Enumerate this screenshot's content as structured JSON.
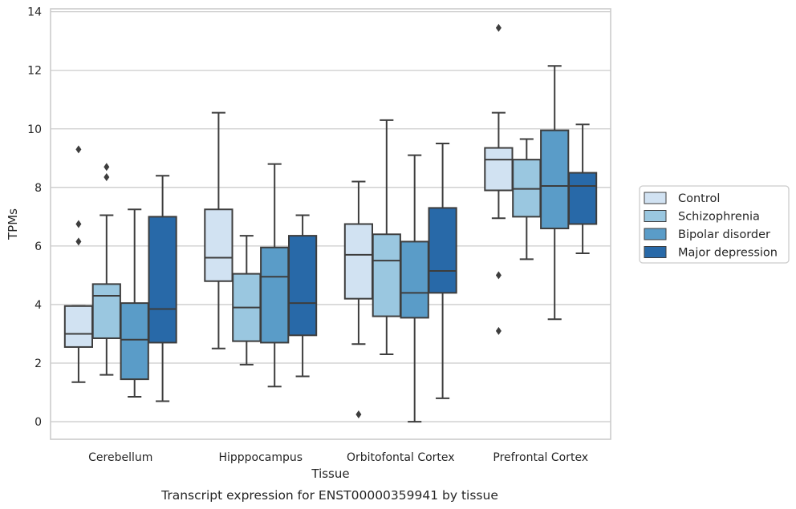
{
  "chart_data": {
    "type": "box",
    "caption": "Transcript expression for ENST00000359941 by tissue",
    "xlabel": "Tissue",
    "ylabel": "TPMs",
    "ylim": [
      -0.6,
      14.1
    ],
    "yticks": [
      0,
      2,
      4,
      6,
      8,
      10,
      12,
      14
    ],
    "grid": "horizontal",
    "legend_placement": "right",
    "categories": [
      "Cerebellum",
      "Hipppocampus",
      "Orbitofontal Cortex",
      "Prefrontal Cortex"
    ],
    "series": [
      {
        "name": "Control",
        "color": "#d1e2f2",
        "boxes": [
          {
            "whislo": 1.35,
            "q1": 2.55,
            "med": 3.0,
            "q3": 3.95,
            "whishi": 3.95,
            "fliers": [
              6.15,
              6.75,
              9.3
            ]
          },
          {
            "whislo": 2.5,
            "q1": 4.8,
            "med": 5.6,
            "q3": 7.25,
            "whishi": 10.55,
            "fliers": []
          },
          {
            "whislo": 2.65,
            "q1": 4.2,
            "med": 5.7,
            "q3": 6.75,
            "whishi": 8.2,
            "fliers": [
              0.25
            ]
          },
          {
            "whislo": 6.95,
            "q1": 7.9,
            "med": 8.95,
            "q3": 9.35,
            "whishi": 10.55,
            "fliers": [
              3.1,
              5.0,
              13.45
            ]
          }
        ]
      },
      {
        "name": "Schizophrenia",
        "color": "#9ac7e0",
        "boxes": [
          {
            "whislo": 1.6,
            "q1": 2.85,
            "med": 4.3,
            "q3": 4.7,
            "whishi": 7.05,
            "fliers": [
              8.35,
              8.7
            ]
          },
          {
            "whislo": 1.95,
            "q1": 2.75,
            "med": 3.9,
            "q3": 5.05,
            "whishi": 6.35,
            "fliers": []
          },
          {
            "whislo": 2.3,
            "q1": 3.6,
            "med": 5.5,
            "q3": 6.4,
            "whishi": 10.3,
            "fliers": []
          },
          {
            "whislo": 5.55,
            "q1": 7.0,
            "med": 7.95,
            "q3": 8.95,
            "whishi": 9.65,
            "fliers": []
          }
        ]
      },
      {
        "name": "Bipolar disorder",
        "color": "#5a9cc8",
        "boxes": [
          {
            "whislo": 0.85,
            "q1": 1.45,
            "med": 2.8,
            "q3": 4.05,
            "whishi": 7.25,
            "fliers": []
          },
          {
            "whislo": 1.2,
            "q1": 2.7,
            "med": 4.95,
            "q3": 5.95,
            "whishi": 8.8,
            "fliers": []
          },
          {
            "whislo": 0.0,
            "q1": 3.55,
            "med": 4.4,
            "q3": 6.15,
            "whishi": 9.1,
            "fliers": []
          },
          {
            "whislo": 3.5,
            "q1": 6.6,
            "med": 8.05,
            "q3": 9.95,
            "whishi": 12.15,
            "fliers": []
          }
        ]
      },
      {
        "name": "Major depression",
        "color": "#2869a8",
        "boxes": [
          {
            "whislo": 0.7,
            "q1": 2.7,
            "med": 3.85,
            "q3": 7.0,
            "whishi": 8.4,
            "fliers": []
          },
          {
            "whislo": 1.55,
            "q1": 2.95,
            "med": 4.05,
            "q3": 6.35,
            "whishi": 7.05,
            "fliers": []
          },
          {
            "whislo": 0.8,
            "q1": 4.4,
            "med": 5.15,
            "q3": 7.3,
            "whishi": 9.5,
            "fliers": []
          },
          {
            "whislo": 5.75,
            "q1": 6.75,
            "med": 8.05,
            "q3": 8.5,
            "whishi": 10.15,
            "fliers": []
          }
        ]
      }
    ]
  }
}
